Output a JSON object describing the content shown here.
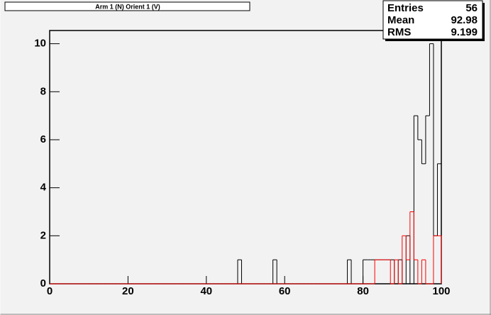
{
  "chart_data": {
    "type": "histogram",
    "title": "Arm 1 (N) Orient 1 (V)",
    "bins": [
      0,
      1,
      2,
      3,
      4,
      5,
      6,
      7,
      8,
      9,
      10,
      11,
      12,
      13,
      14,
      15,
      16,
      17,
      18,
      19,
      20,
      21,
      22,
      23,
      24,
      25,
      26,
      27,
      28,
      29,
      30,
      31,
      32,
      33,
      34,
      35,
      36,
      37,
      38,
      39,
      40,
      41,
      42,
      43,
      44,
      45,
      46,
      47,
      48,
      49,
      50,
      51,
      52,
      53,
      54,
      55,
      56,
      57,
      58,
      59,
      60,
      61,
      62,
      63,
      64,
      65,
      66,
      67,
      68,
      69,
      70,
      71,
      72,
      73,
      74,
      75,
      76,
      77,
      78,
      79,
      80,
      81,
      82,
      83,
      84,
      85,
      86,
      87,
      88,
      89,
      90,
      91,
      92,
      93,
      94,
      95,
      96,
      97,
      98,
      99,
      100
    ],
    "series": [
      {
        "color": "#000000",
        "values": [
          0,
          0,
          0,
          0,
          0,
          0,
          0,
          0,
          0,
          0,
          0,
          0,
          0,
          0,
          0,
          0,
          0,
          0,
          0,
          0,
          0,
          0,
          0,
          0,
          0,
          0,
          0,
          0,
          0,
          0,
          0,
          0,
          0,
          0,
          0,
          0,
          0,
          0,
          0,
          0,
          0,
          0,
          0,
          0,
          0,
          0,
          0,
          0,
          1,
          0,
          0,
          0,
          0,
          0,
          0,
          0,
          0,
          1,
          0,
          0,
          0,
          0,
          0,
          0,
          0,
          0,
          0,
          0,
          0,
          0,
          0,
          0,
          0,
          0,
          0,
          0,
          1,
          0,
          0,
          0,
          1,
          1,
          1,
          1,
          1,
          1,
          1,
          1,
          0,
          1,
          0,
          2,
          0,
          7,
          6,
          5,
          7,
          10,
          2,
          5
        ]
      },
      {
        "color": "#ff0000",
        "values": [
          0,
          0,
          0,
          0,
          0,
          0,
          0,
          0,
          0,
          0,
          0,
          0,
          0,
          0,
          0,
          0,
          0,
          0,
          0,
          0,
          0,
          0,
          0,
          0,
          0,
          0,
          0,
          0,
          0,
          0,
          0,
          0,
          0,
          0,
          0,
          0,
          0,
          0,
          0,
          0,
          0,
          0,
          0,
          0,
          0,
          0,
          0,
          0,
          0,
          0,
          0,
          0,
          0,
          0,
          0,
          0,
          0,
          0,
          0,
          0,
          0,
          0,
          0,
          0,
          0,
          0,
          0,
          0,
          0,
          0,
          0,
          0,
          0,
          0,
          0,
          0,
          0,
          0,
          0,
          0,
          0,
          0,
          0,
          1,
          1,
          1,
          1,
          0,
          1,
          0,
          2,
          1,
          3,
          1,
          0,
          1,
          0,
          0,
          2,
          2
        ]
      }
    ],
    "stats": [
      {
        "label": "Entries",
        "value": 56
      },
      {
        "label": "Mean",
        "value": 92.98
      },
      {
        "label": "RMS",
        "value": 9.199
      }
    ],
    "xlim": [
      0,
      100
    ],
    "xticks": [
      0,
      20,
      40,
      60,
      80,
      100
    ],
    "ylim": [
      0,
      10.55
    ],
    "yticks": [
      0,
      2,
      4,
      6,
      8,
      10
    ]
  }
}
